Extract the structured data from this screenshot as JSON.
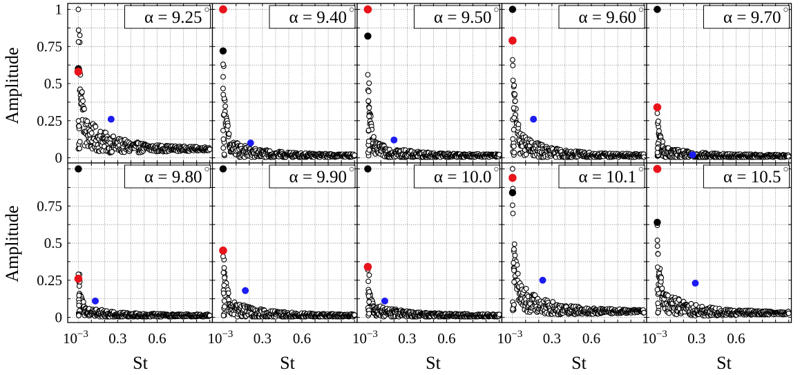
{
  "figure": {
    "ylabel": "Amplitude",
    "xlabel": "St",
    "x_tick_labels": [
      "10−3",
      "0.3",
      "0.6"
    ],
    "x_ticks_shown": [
      0.001,
      0.3,
      0.6
    ],
    "y_tick_labels": [
      "0",
      "0.25",
      "0.5",
      "0.75",
      "1"
    ],
    "y_ticks_shown": [
      0,
      0.25,
      0.5,
      0.75,
      1.0
    ],
    "xlim": [
      -0.08,
      1.02
    ],
    "ylim": [
      -0.035,
      1.04
    ],
    "colors": {
      "black_highlight": "#000000",
      "red_highlight": "#e8141b",
      "blue_highlight": "#1c1cf2",
      "open_marker": "#000000",
      "grid": "#7a7a7a"
    }
  },
  "chart_data": [
    {
      "type": "scatter",
      "label": "α = 9.25",
      "alpha_value": "9.25",
      "xlabel": "St",
      "ylabel": "Amplitude",
      "xlim": [
        -0.08,
        1.02
      ],
      "ylim": [
        -0.035,
        1.04
      ],
      "grid": true,
      "spectrum_peak": 1.0,
      "spectrum_start": 0.62,
      "spectrum_mid": 0.2,
      "spectrum_end": 0.06,
      "scatter_spread": 0.12,
      "highlights": {
        "black": {
          "x": 0.001,
          "y": 0.6
        },
        "red": {
          "x": 0.001,
          "y": 0.58
        },
        "blue": {
          "x": 0.25,
          "y": 0.26
        }
      }
    },
    {
      "type": "scatter",
      "label": "α = 9.40",
      "alpha_value": "9.40",
      "xlabel": "St",
      "ylabel": "Amplitude",
      "xlim": [
        -0.08,
        1.02
      ],
      "ylim": [
        -0.035,
        1.04
      ],
      "grid": true,
      "spectrum_peak": 0.63,
      "spectrum_start": 0.43,
      "spectrum_mid": 0.08,
      "spectrum_end": 0.015,
      "scatter_spread": 0.06,
      "highlights": {
        "black": {
          "x": 0.001,
          "y": 0.72
        },
        "red": {
          "x": 0.001,
          "y": 1.0
        },
        "blue": {
          "x": 0.21,
          "y": 0.1
        }
      }
    },
    {
      "type": "scatter",
      "label": "α = 9.50",
      "alpha_value": "9.50",
      "xlabel": "St",
      "ylabel": "Amplitude",
      "xlim": [
        -0.08,
        1.02
      ],
      "ylim": [
        -0.035,
        1.04
      ],
      "grid": true,
      "spectrum_peak": 0.56,
      "spectrum_start": 0.37,
      "spectrum_mid": 0.07,
      "spectrum_end": 0.015,
      "scatter_spread": 0.05,
      "highlights": {
        "black": {
          "x": 0.001,
          "y": 0.82
        },
        "red": {
          "x": 0.001,
          "y": 1.0
        },
        "blue": {
          "x": 0.2,
          "y": 0.12
        }
      }
    },
    {
      "type": "scatter",
      "label": "α = 9.60",
      "alpha_value": "9.60",
      "xlabel": "St",
      "ylabel": "Amplitude",
      "xlim": [
        -0.08,
        1.02
      ],
      "ylim": [
        -0.035,
        1.04
      ],
      "grid": true,
      "spectrum_peak": 0.66,
      "spectrum_start": 0.5,
      "spectrum_mid": 0.12,
      "spectrum_end": 0.015,
      "scatter_spread": 0.08,
      "highlights": {
        "black": {
          "x": 0.001,
          "y": 1.0
        },
        "red": {
          "x": 0.001,
          "y": 0.79
        },
        "blue": {
          "x": 0.16,
          "y": 0.26
        }
      }
    },
    {
      "type": "scatter",
      "label": "α = 9.70",
      "alpha_value": "9.70",
      "xlabel": "St",
      "ylabel": "Amplitude",
      "xlim": [
        -0.08,
        1.02
      ],
      "ylim": [
        -0.035,
        1.04
      ],
      "grid": true,
      "spectrum_peak": 0.3,
      "spectrum_start": 0.21,
      "spectrum_mid": 0.04,
      "spectrum_end": 0.012,
      "scatter_spread": 0.04,
      "highlights": {
        "black": {
          "x": 0.001,
          "y": 1.0
        },
        "red": {
          "x": 0.001,
          "y": 0.34
        },
        "blue": {
          "x": 0.27,
          "y": 0.02
        }
      }
    },
    {
      "type": "scatter",
      "label": "α = 9.80",
      "alpha_value": "9.80",
      "xlabel": "St",
      "ylabel": "Amplitude",
      "xlim": [
        -0.08,
        1.02
      ],
      "ylim": [
        -0.035,
        1.04
      ],
      "grid": true,
      "spectrum_peak": 0.29,
      "spectrum_start": 0.15,
      "spectrum_mid": 0.05,
      "spectrum_end": 0.012,
      "scatter_spread": 0.03,
      "highlights": {
        "black": {
          "x": 0.001,
          "y": 1.0
        },
        "red": {
          "x": 0.001,
          "y": 0.26
        },
        "blue": {
          "x": 0.13,
          "y": 0.11
        }
      }
    },
    {
      "type": "scatter",
      "label": "α = 9.90",
      "alpha_value": "9.90",
      "xlabel": "St",
      "ylabel": "Amplitude",
      "xlim": [
        -0.08,
        1.02
      ],
      "ylim": [
        -0.035,
        1.04
      ],
      "grid": true,
      "spectrum_peak": 0.41,
      "spectrum_start": 0.28,
      "spectrum_mid": 0.08,
      "spectrum_end": 0.012,
      "scatter_spread": 0.06,
      "highlights": {
        "black": {
          "x": 0.001,
          "y": 1.0
        },
        "red": {
          "x": 0.001,
          "y": 0.45
        },
        "blue": {
          "x": 0.17,
          "y": 0.18
        }
      }
    },
    {
      "type": "scatter",
      "label": "α = 10.0",
      "alpha_value": "10.0",
      "xlabel": "St",
      "ylabel": "Amplitude",
      "xlim": [
        -0.08,
        1.02
      ],
      "ylim": [
        -0.035,
        1.04
      ],
      "grid": true,
      "spectrum_peak": 0.32,
      "spectrum_start": 0.14,
      "spectrum_mid": 0.06,
      "spectrum_end": 0.012,
      "scatter_spread": 0.04,
      "highlights": {
        "black": {
          "x": 0.001,
          "y": 1.0
        },
        "red": {
          "x": 0.001,
          "y": 0.34
        },
        "blue": {
          "x": 0.13,
          "y": 0.11
        }
      }
    },
    {
      "type": "scatter",
      "label": "α = 10.1",
      "alpha_value": "10.1",
      "xlabel": "St",
      "ylabel": "Amplitude",
      "xlim": [
        -0.08,
        1.02
      ],
      "ylim": [
        -0.035,
        1.04
      ],
      "grid": true,
      "spectrum_peak": 1.0,
      "spectrum_start": 0.5,
      "spectrum_mid": 0.17,
      "spectrum_end": 0.04,
      "scatter_spread": 0.1,
      "highlights": {
        "black": {
          "x": 0.001,
          "y": 0.84
        },
        "red": {
          "x": 0.001,
          "y": 0.94
        },
        "blue": {
          "x": 0.23,
          "y": 0.25
        }
      }
    },
    {
      "type": "scatter",
      "label": "α = 10.5",
      "alpha_value": "10.5",
      "xlabel": "St",
      "ylabel": "Amplitude",
      "xlim": [
        -0.08,
        1.02
      ],
      "ylim": [
        -0.035,
        1.04
      ],
      "grid": true,
      "spectrum_peak": 0.62,
      "spectrum_start": 0.34,
      "spectrum_mid": 0.13,
      "spectrum_end": 0.03,
      "scatter_spread": 0.08,
      "highlights": {
        "black": {
          "x": 0.001,
          "y": 0.64
        },
        "red": {
          "x": 0.001,
          "y": 1.0
        },
        "blue": {
          "x": 0.29,
          "y": 0.23
        }
      }
    }
  ]
}
